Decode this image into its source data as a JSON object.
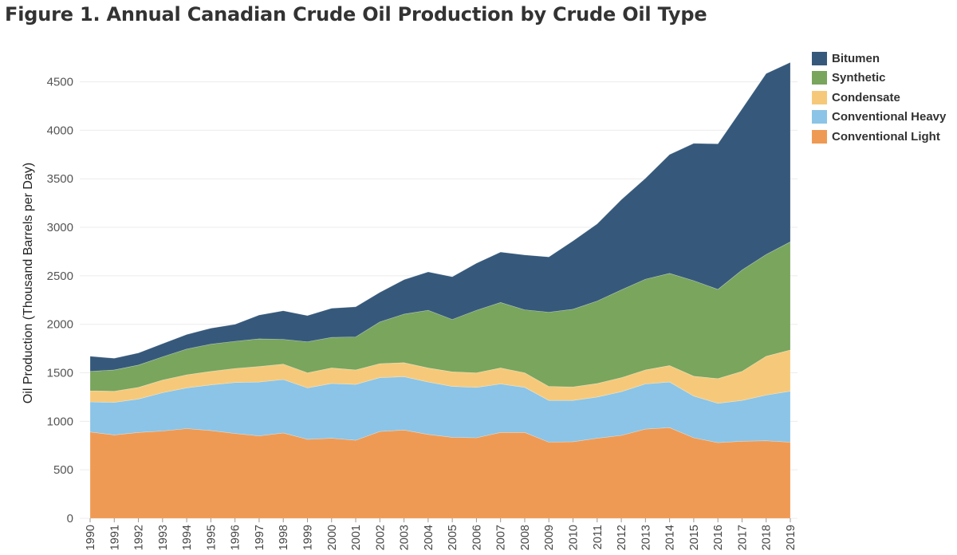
{
  "chart_data": {
    "type": "area",
    "stacked": true,
    "title": "Figure 1. Annual Canadian Crude Oil Production by Crude Oil Type",
    "xlabel": "",
    "ylabel": "Oil Production (Thousand Barrels per Day)",
    "ylim": [
      0,
      4850
    ],
    "yticks": [
      0,
      500,
      1000,
      1500,
      2000,
      2500,
      3000,
      3500,
      4000,
      4500
    ],
    "grid": true,
    "legend_position": "top-right",
    "categories": [
      "1990",
      "1991",
      "1992",
      "1993",
      "1994",
      "1995",
      "1996",
      "1997",
      "1998",
      "1999",
      "2000",
      "2001",
      "2002",
      "2003",
      "2004",
      "2005",
      "2006",
      "2007",
      "2008",
      "2009",
      "2010",
      "2011",
      "2012",
      "2013",
      "2014",
      "2015",
      "2016",
      "2017",
      "2018",
      "2019"
    ],
    "series": [
      {
        "name": "Conventional Light",
        "color": "#ef9a54",
        "values": [
          890,
          860,
          885,
          900,
          925,
          905,
          875,
          850,
          880,
          815,
          825,
          805,
          895,
          910,
          865,
          835,
          830,
          885,
          885,
          785,
          790,
          825,
          855,
          920,
          935,
          830,
          780,
          795,
          800,
          785
        ]
      },
      {
        "name": "Conventional Heavy",
        "color": "#8bc4e6",
        "values": [
          310,
          335,
          345,
          395,
          420,
          470,
          525,
          555,
          550,
          530,
          565,
          575,
          555,
          550,
          540,
          525,
          520,
          500,
          465,
          430,
          425,
          425,
          450,
          465,
          470,
          430,
          405,
          420,
          470,
          525
        ]
      },
      {
        "name": "Condensate",
        "color": "#f6c97a",
        "values": [
          115,
          115,
          120,
          130,
          135,
          140,
          145,
          160,
          160,
          155,
          160,
          150,
          145,
          145,
          145,
          150,
          150,
          165,
          150,
          145,
          140,
          140,
          145,
          145,
          170,
          205,
          255,
          300,
          400,
          425
        ]
      },
      {
        "name": "Synthetic",
        "color": "#79a55d",
        "values": [
          200,
          220,
          230,
          240,
          265,
          280,
          280,
          285,
          255,
          320,
          315,
          340,
          430,
          500,
          595,
          540,
          645,
          675,
          650,
          765,
          800,
          850,
          905,
          935,
          950,
          985,
          920,
          1045,
          1050,
          1115
        ]
      },
      {
        "name": "Bitumen",
        "color": "#36597b",
        "values": [
          155,
          120,
          125,
          135,
          150,
          165,
          175,
          245,
          295,
          270,
          300,
          310,
          305,
          355,
          395,
          440,
          485,
          520,
          565,
          570,
          705,
          795,
          930,
          1040,
          1225,
          1415,
          1500,
          1660,
          1865,
          1850
        ]
      }
    ]
  }
}
